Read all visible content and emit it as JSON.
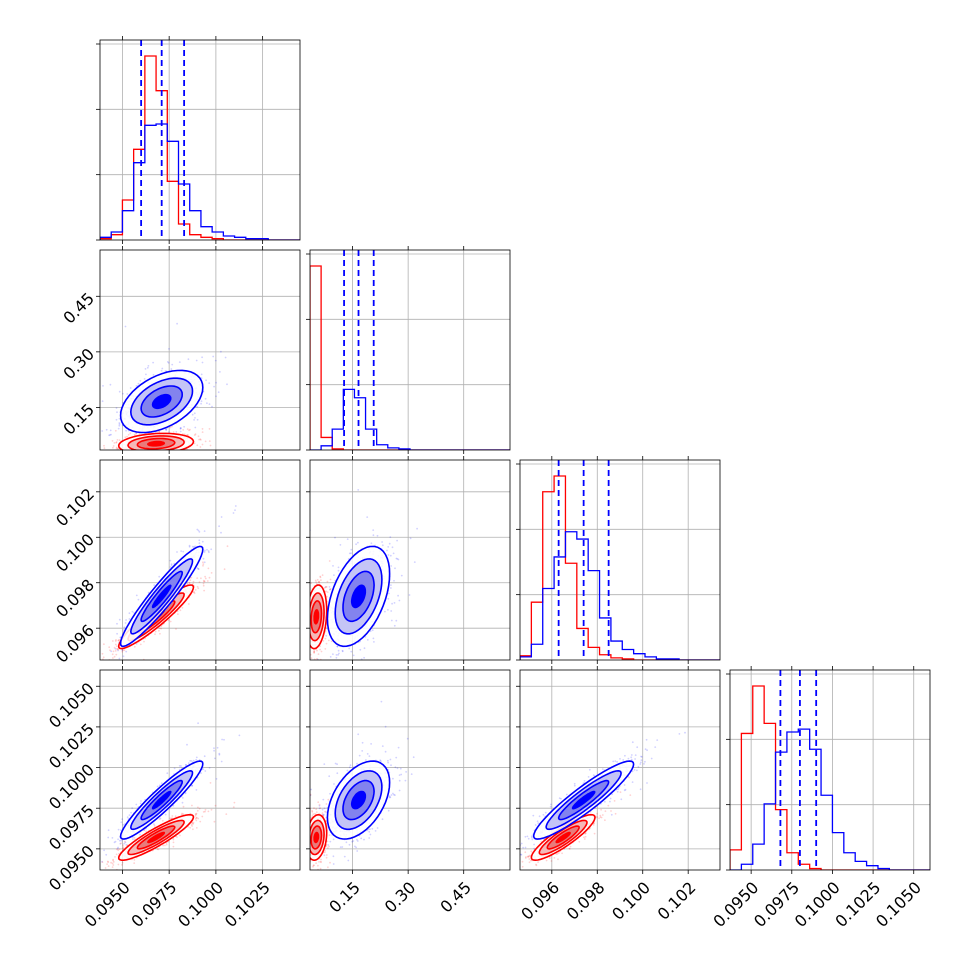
{
  "chart_data": {
    "type": "corner",
    "n_params": 4,
    "series": [
      {
        "name": "",
        "color": "#0000ff"
      },
      {
        "name": "",
        "color": "#ff0000"
      }
    ],
    "params": [
      {
        "range": [
          0.0938,
          0.1045
        ],
        "ticks": [
          0.095,
          0.0975,
          0.1,
          0.1025
        ],
        "tick_labels": [
          "0.0950",
          "0.0975",
          "0.1000",
          "0.1025"
        ]
      },
      {
        "range": [
          0.035,
          0.575
        ],
        "ticks": [
          0.15,
          0.3,
          0.45
        ],
        "tick_labels": [
          "0.15",
          "0.30",
          "0.45"
        ]
      },
      {
        "range": [
          0.0946,
          0.1034
        ],
        "ticks": [
          0.096,
          0.098,
          0.1,
          0.102
        ],
        "tick_labels": [
          "0.096",
          "0.098",
          "0.100",
          "0.102"
        ]
      },
      {
        "range": [
          0.0937,
          0.106
        ],
        "ticks": [
          0.095,
          0.0975,
          0.1,
          0.1025,
          0.105
        ],
        "tick_labels": [
          "0.0950",
          "0.0975",
          "0.1000",
          "0.1025",
          "0.1050"
        ]
      }
    ],
    "quantiles_blue": [
      [
        0.096,
        0.0971,
        0.0983
      ],
      [
        0.127,
        0.166,
        0.207
      ],
      [
        0.0963,
        0.0974,
        0.0985
      ],
      [
        0.0968,
        0.098,
        0.099
      ]
    ],
    "histograms": [
      {
        "bins": [
          0.0938,
          0.0944,
          0.095,
          0.0956,
          0.0962,
          0.0968,
          0.0974,
          0.098,
          0.0986,
          0.0992,
          0.0998,
          0.1004,
          0.101,
          0.1016,
          0.1022,
          0.1028,
          0.1034,
          0.104,
          0.1045
        ],
        "blue": [
          2,
          6,
          22,
          58,
          86,
          87,
          74,
          42,
          22,
          10,
          6,
          3,
          2,
          1,
          1,
          0,
          0,
          0
        ],
        "red": [
          1,
          4,
          30,
          68,
          138,
          112,
          44,
          12,
          4,
          2,
          1,
          0,
          0,
          0,
          0,
          0,
          0,
          0
        ]
      },
      {
        "bins": [
          0.035,
          0.065,
          0.095,
          0.125,
          0.155,
          0.185,
          0.215,
          0.245,
          0.275,
          0.305,
          0.335,
          0.365,
          0.395,
          0.425,
          0.455,
          0.485,
          0.515,
          0.545,
          0.575
        ],
        "blue": [
          0,
          4,
          20,
          58,
          50,
          20,
          5,
          2,
          1,
          0,
          0,
          0,
          0,
          0,
          0,
          0,
          0,
          0
        ],
        "red": [
          176,
          12,
          1,
          0,
          0,
          0,
          0,
          0,
          0,
          0,
          0,
          0,
          0,
          0,
          0,
          0,
          0,
          0
        ]
      },
      {
        "bins": [
          0.0946,
          0.0951,
          0.0956,
          0.0961,
          0.0966,
          0.0971,
          0.0976,
          0.0981,
          0.0986,
          0.0991,
          0.0996,
          0.1001,
          0.1006,
          0.1011,
          0.1016,
          0.1021,
          0.1026,
          0.1031,
          0.1034
        ],
        "blue": [
          3,
          15,
          68,
          98,
          122,
          115,
          85,
          40,
          18,
          10,
          6,
          3,
          1,
          1,
          0,
          0,
          0,
          0
        ],
        "red": [
          4,
          55,
          160,
          175,
          92,
          30,
          12,
          5,
          2,
          1,
          0,
          0,
          0,
          0,
          0,
          0,
          0,
          0
        ]
      },
      {
        "bins": [
          0.0937,
          0.0944,
          0.0951,
          0.0958,
          0.0965,
          0.0972,
          0.0979,
          0.0986,
          0.0993,
          0.1,
          0.1007,
          0.1014,
          0.1021,
          0.1028,
          0.1035,
          0.1042,
          0.1049,
          0.1056,
          0.106
        ],
        "blue": [
          0,
          4,
          18,
          46,
          82,
          96,
          98,
          84,
          52,
          26,
          12,
          6,
          3,
          1,
          0,
          0,
          0,
          0
        ],
        "red": [
          14,
          95,
          128,
          102,
          42,
          12,
          4,
          1,
          0,
          0,
          0,
          0,
          0,
          0,
          0,
          0,
          0,
          0
        ]
      }
    ],
    "pairs": {
      "1-0": {
        "blue": {
          "mean": [
            0.0971,
            0.166
          ],
          "sd": [
            0.0011,
            0.042
          ],
          "rho": 0.45
        },
        "red": {
          "mean": [
            0.0968,
            0.052
          ],
          "sd": [
            0.001,
            0.014
          ],
          "rho": 0.2
        }
      },
      "2-0": {
        "blue": {
          "mean": [
            0.0971,
            0.0974
          ],
          "sd": [
            0.0011,
            0.0011
          ],
          "rho": 0.94
        },
        "red": {
          "mean": [
            0.0968,
            0.0965
          ],
          "sd": [
            0.001,
            0.0007
          ],
          "rho": 0.93
        }
      },
      "2-1": {
        "blue": {
          "mean": [
            0.166,
            0.0974
          ],
          "sd": [
            0.042,
            0.0011
          ],
          "rho": 0.45
        },
        "red": {
          "mean": [
            0.052,
            0.0965
          ],
          "sd": [
            0.014,
            0.0007
          ],
          "rho": 0.2
        }
      },
      "3-0": {
        "blue": {
          "mean": [
            0.0971,
            0.098
          ],
          "sd": [
            0.0011,
            0.0012
          ],
          "rho": 0.93
        },
        "red": {
          "mean": [
            0.0968,
            0.0957
          ],
          "sd": [
            0.001,
            0.0007
          ],
          "rho": 0.9
        }
      },
      "3-1": {
        "blue": {
          "mean": [
            0.166,
            0.098
          ],
          "sd": [
            0.042,
            0.0012
          ],
          "rho": 0.45
        },
        "red": {
          "mean": [
            0.052,
            0.0957
          ],
          "sd": [
            0.014,
            0.0007
          ],
          "rho": 0.2
        }
      },
      "3-2": {
        "blue": {
          "mean": [
            0.0974,
            0.098
          ],
          "sd": [
            0.0011,
            0.0012
          ],
          "rho": 0.92
        },
        "red": {
          "mean": [
            0.0965,
            0.0957
          ],
          "sd": [
            0.0007,
            0.0007
          ],
          "rho": 0.88
        }
      }
    },
    "grid": true,
    "legend": "none"
  }
}
